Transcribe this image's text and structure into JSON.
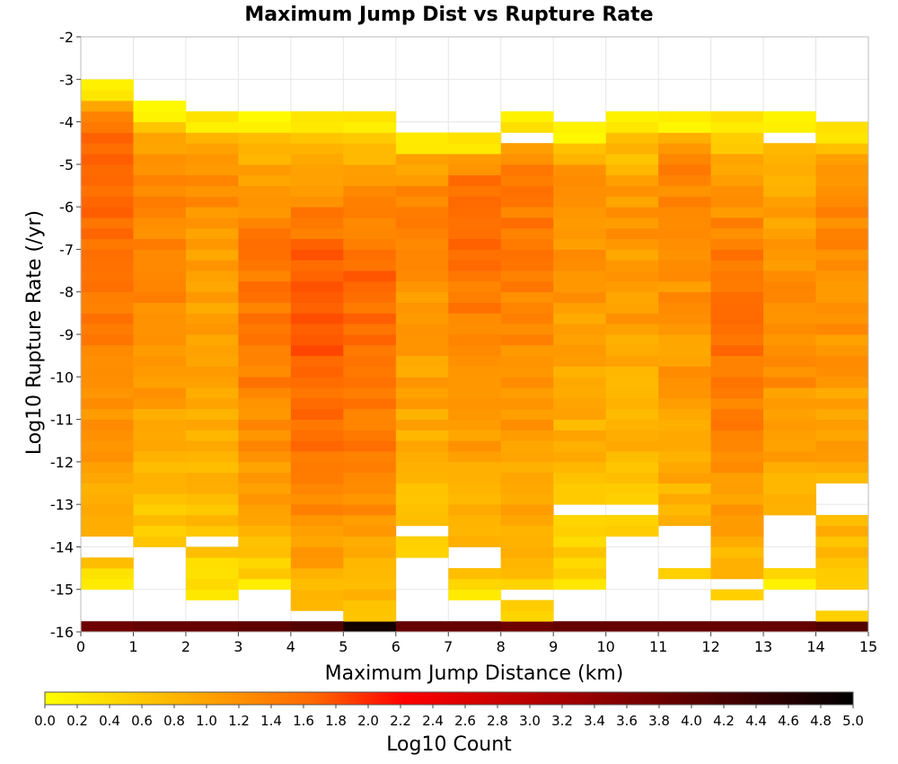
{
  "chart_data": {
    "type": "heatmap",
    "title": "Maximum Jump Dist vs Rupture Rate",
    "xlabel": "Maximum Jump Distance (km)",
    "ylabel": "Log10 Rupture Rate (/yr)",
    "colorbar_label": "Log10 Count",
    "xlim": [
      0,
      15
    ],
    "ylim": [
      -16,
      -2
    ],
    "x_bin_width": 1,
    "y_bin_width": 0.25,
    "y_bin_start": -16,
    "color_range": [
      0,
      5
    ],
    "colormap": [
      "#ffff00",
      "#ffcc00",
      "#ff9900",
      "#ff6600",
      "#ff0000",
      "#cc0000",
      "#990000",
      "#660000",
      "#330000",
      "#000000"
    ],
    "x_ticks": [
      "0",
      "1",
      "2",
      "3",
      "4",
      "5",
      "6",
      "7",
      "8",
      "9",
      "10",
      "11",
      "12",
      "13",
      "14",
      "15"
    ],
    "y_ticks": [
      "-2",
      "-3",
      "-4",
      "-5",
      "-6",
      "-7",
      "-8",
      "-9",
      "-10",
      "-11",
      "-12",
      "-13",
      "-14",
      "-15",
      "-16"
    ],
    "colorbar_ticks": [
      "0.0",
      "0.2",
      "0.4",
      "0.6",
      "0.8",
      "1.0",
      "1.2",
      "1.4",
      "1.6",
      "1.8",
      "2.0",
      "2.2",
      "2.4",
      "2.6",
      "2.8",
      "3.0",
      "3.2",
      "3.4",
      "3.6",
      "3.8",
      "4.0",
      "4.2",
      "4.4",
      "4.6",
      "4.8",
      "5.0"
    ],
    "grid": true,
    "columns": [
      {
        "x": 0,
        "bottom": [
          3.8,
          3.9,
          3.9,
          3.9
        ],
        "max_rate": -3.0,
        "peak_rate": -5.5,
        "peak": 1.65,
        "low_rate": -15.0,
        "low": 0.1,
        "gaps": [
          [
            -14.3,
            -13.8
          ]
        ]
      },
      {
        "x": 1,
        "bottom": [
          3.8,
          3.9,
          3.8,
          3.9
        ],
        "max_rate": -3.6,
        "peak_rate": -6.5,
        "peak": 1.35,
        "low_rate": -14.0,
        "low": 0.3,
        "gaps": []
      },
      {
        "x": 2,
        "bottom": [
          3.9,
          3.8,
          3.9,
          3.9
        ],
        "max_rate": -3.85,
        "peak_rate": -5.5,
        "peak": 1.2,
        "low_rate": -15.3,
        "low": 0.15,
        "gaps": [
          [
            -15.0,
            -14.9
          ],
          [
            -14.0,
            -13.7
          ]
        ]
      },
      {
        "x": 3,
        "bottom": [
          3.9,
          3.9,
          4.0,
          3.9
        ],
        "max_rate": -3.85,
        "peak_rate": -9.5,
        "peak": 1.45,
        "low_rate": -15.0,
        "low": 0.1,
        "gaps": []
      },
      {
        "x": 4,
        "bottom": [
          4.0,
          4.1,
          4.0,
          4.1
        ],
        "max_rate": -3.85,
        "peak_rate": -10.0,
        "peak": 1.7,
        "low_rate": -15.6,
        "low": 0.3,
        "gaps": [
          [
            -3.85,
            -3.7
          ]
        ]
      },
      {
        "x": 5,
        "bottom": [
          4.6,
          4.8,
          4.9,
          4.8
        ],
        "max_rate": -3.85,
        "peak_rate": -10.0,
        "peak": 1.6,
        "low_rate": -16.0,
        "low": 0.1,
        "gaps": []
      },
      {
        "x": 6,
        "bottom": [
          3.8,
          3.9,
          3.9,
          3.9
        ],
        "max_rate": -4.25,
        "peak_rate": -6.5,
        "peak": 1.3,
        "low_rate": -14.3,
        "low": 0.2,
        "gaps": [
          [
            -13.7,
            -13.4
          ]
        ]
      },
      {
        "x": 7,
        "bottom": [
          3.9,
          3.8,
          3.9,
          3.9
        ],
        "max_rate": -4.25,
        "peak_rate": -6.5,
        "peak": 1.55,
        "low_rate": -15.3,
        "low": 0.1,
        "gaps": [
          [
            -14.6,
            -14.0
          ]
        ]
      },
      {
        "x": 8,
        "bottom": [
          3.9,
          3.8,
          3.9,
          3.9
        ],
        "max_rate": -3.85,
        "peak_rate": -6.5,
        "peak": 1.45,
        "low_rate": -16.0,
        "low": 0.15,
        "gaps": [
          [
            -4.4,
            -4.3
          ],
          [
            -15.3,
            -15.0
          ]
        ]
      },
      {
        "x": 9,
        "bottom": [
          3.9,
          3.9,
          3.9,
          3.9
        ],
        "max_rate": -4.1,
        "peak_rate": -6.5,
        "peak": 1.2,
        "low_rate": -15.0,
        "low": 0.1,
        "gaps": [
          [
            -13.3,
            -13.0
          ]
        ]
      },
      {
        "x": 10,
        "bottom": [
          3.9,
          3.9,
          3.8,
          3.9
        ],
        "max_rate": -3.85,
        "peak_rate": -7.5,
        "peak": 1.1,
        "low_rate": -13.8,
        "low": 0.3,
        "gaps": [
          [
            -13.3,
            -13.1
          ]
        ]
      },
      {
        "x": 11,
        "bottom": [
          3.8,
          3.9,
          3.9,
          3.9
        ],
        "max_rate": -3.85,
        "peak_rate": -6.0,
        "peak": 1.3,
        "low_rate": -14.8,
        "low": 0.35,
        "gaps": [
          [
            -14.5,
            -13.6
          ]
        ]
      },
      {
        "x": 12,
        "bottom": [
          3.9,
          3.9,
          3.9,
          3.8
        ],
        "max_rate": -3.85,
        "peak_rate": -10.0,
        "peak": 1.5,
        "low_rate": -15.3,
        "low": 0.2,
        "gaps": [
          [
            -15.0,
            -14.8
          ]
        ]
      },
      {
        "x": 13,
        "bottom": [
          3.8,
          3.9,
          3.9,
          3.9
        ],
        "max_rate": -3.85,
        "peak_rate": -10.0,
        "peak": 1.2,
        "low_rate": -15.0,
        "low": 0.1,
        "gaps": [
          [
            -4.4,
            -4.3
          ],
          [
            -14.6,
            -13.3
          ]
        ]
      },
      {
        "x": 14,
        "bottom": [
          3.9,
          3.9,
          3.9,
          4.1
        ],
        "max_rate": -4.0,
        "peak_rate": -7.0,
        "peak": 1.3,
        "low_rate": -16.0,
        "low": 0.1,
        "gaps": [
          [
            -4.6,
            -4.4
          ],
          [
            -13.2,
            -12.4
          ],
          [
            -15.6,
            -15.0
          ]
        ]
      }
    ]
  }
}
